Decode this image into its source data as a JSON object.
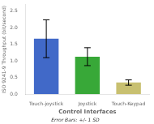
{
  "chart_data": {
    "type": "bar",
    "categories": [
      "Touch-joystick",
      "Joystick",
      "Touch-Keypad"
    ],
    "values": [
      1.67,
      1.13,
      0.35
    ],
    "errors": [
      0.57,
      0.27,
      0.08
    ],
    "colors": [
      "#4169c8",
      "#38a838",
      "#c8c070"
    ],
    "xlabel": "Control Interfaces",
    "ylabel": "ISO 9241-9 Throughput (bit/second)",
    "ylim": [
      0.0,
      2.7
    ],
    "yticks": [
      {
        "value": 0,
        "label": "0.0"
      },
      0.5,
      {
        "value": 1,
        "label": "1.0"
      },
      1.5,
      {
        "value": 2,
        "label": "2.0"
      },
      2.5
    ],
    "grid": false,
    "annotations": [
      "Error Bars: +/- 1 SD"
    ]
  }
}
